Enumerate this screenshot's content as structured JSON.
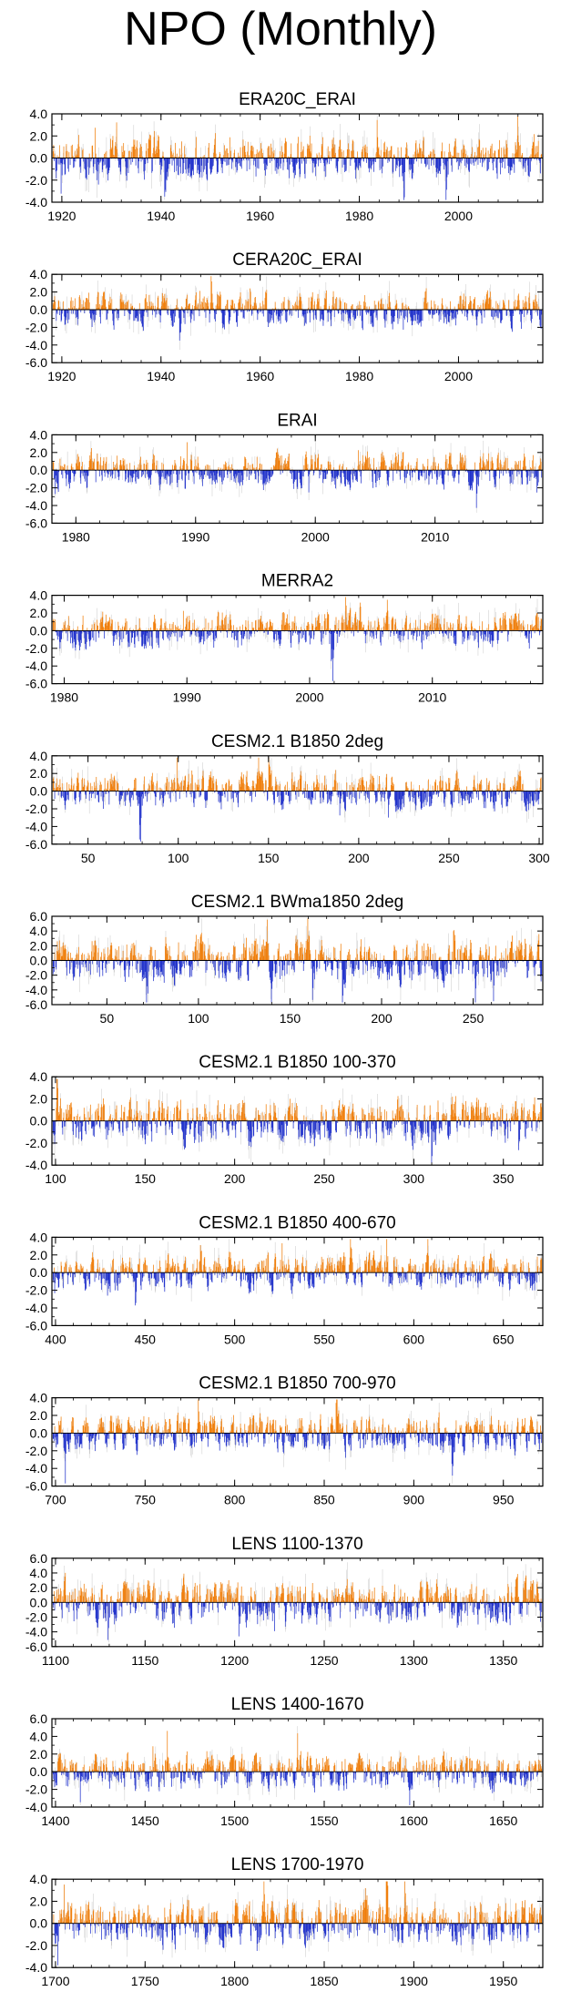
{
  "page_title": "NPO (Monthly)",
  "colors": {
    "positive": "#f07f0c",
    "negative": "#2233cc",
    "envelope": "#c8c8c8"
  },
  "chart_data": [
    {
      "type": "bar",
      "title": "ERA20C_ERAI",
      "xlim": [
        1918,
        2017
      ],
      "ylim": [
        -4.0,
        4.0
      ],
      "yticks": [
        4.0,
        2.0,
        0.0,
        -2.0,
        -4.0
      ],
      "yticklabels": [
        "4.0",
        "2.0",
        "0.0",
        "-2.0",
        "-4.0"
      ],
      "xticks": [
        1920,
        1940,
        1960,
        1980,
        2000
      ],
      "xticklabels": [
        "1920",
        "1940",
        "1960",
        "1980",
        "2000"
      ]
    },
    {
      "type": "bar",
      "title": "CERA20C_ERAI",
      "xlim": [
        1918,
        2017
      ],
      "ylim": [
        -6.0,
        4.0
      ],
      "yticks": [
        4.0,
        2.0,
        0.0,
        -2.0,
        -4.0,
        -6.0
      ],
      "yticklabels": [
        "4.0",
        "2.0",
        "0.0",
        "-2.0",
        "-4.0",
        "-6.0"
      ],
      "xticks": [
        1920,
        1940,
        1960,
        1980,
        2000
      ],
      "xticklabels": [
        "1920",
        "1940",
        "1960",
        "1980",
        "2000"
      ]
    },
    {
      "type": "bar",
      "title": "ERAI",
      "xlim": [
        1978,
        2019
      ],
      "ylim": [
        -6.0,
        4.0
      ],
      "yticks": [
        4.0,
        2.0,
        0.0,
        -2.0,
        -4.0,
        -6.0
      ],
      "yticklabels": [
        "4.0",
        "2.0",
        "0.0",
        "-2.0",
        "-4.0",
        "-6.0"
      ],
      "xticks": [
        1980,
        1990,
        2000,
        2010
      ],
      "xticklabels": [
        "1980",
        "1990",
        "2000",
        "2010"
      ]
    },
    {
      "type": "bar",
      "title": "MERRA2",
      "xlim": [
        1979,
        2019
      ],
      "ylim": [
        -6.0,
        4.0
      ],
      "yticks": [
        4.0,
        2.0,
        0.0,
        -2.0,
        -4.0,
        -6.0
      ],
      "yticklabels": [
        "4.0",
        "2.0",
        "0.0",
        "-2.0",
        "-4.0",
        "-6.0"
      ],
      "xticks": [
        1980,
        1990,
        2000,
        2010
      ],
      "xticklabels": [
        "1980",
        "1990",
        "2000",
        "2010"
      ]
    },
    {
      "type": "bar",
      "title": "CESM2.1 B1850 2deg",
      "xlim": [
        30,
        302
      ],
      "ylim": [
        -6.0,
        4.0
      ],
      "yticks": [
        4.0,
        2.0,
        0.0,
        -2.0,
        -4.0,
        -6.0
      ],
      "yticklabels": [
        "4.0",
        "2.0",
        "0.0",
        "-2.0",
        "-4.0",
        "-6.0"
      ],
      "xticks": [
        50,
        100,
        150,
        200,
        250,
        300
      ],
      "xticklabels": [
        "50",
        "100",
        "150",
        "200",
        "250",
        "300"
      ]
    },
    {
      "type": "bar",
      "title": "CESM2.1 BWma1850 2deg",
      "xlim": [
        20,
        288
      ],
      "ylim": [
        -6.0,
        6.0
      ],
      "yticks": [
        6.0,
        4.0,
        2.0,
        0.0,
        -2.0,
        -4.0,
        -6.0
      ],
      "yticklabels": [
        "6.0",
        "4.0",
        "2.0",
        "0.0",
        "-2.0",
        "-4.0",
        "-6.0"
      ],
      "xticks": [
        50,
        100,
        150,
        200,
        250
      ],
      "xticklabels": [
        "50",
        "100",
        "150",
        "200",
        "250"
      ]
    },
    {
      "type": "bar",
      "title": "CESM2.1 B1850 100-370",
      "xlim": [
        98,
        372
      ],
      "ylim": [
        -4.0,
        4.0
      ],
      "yticks": [
        4.0,
        2.0,
        0.0,
        -2.0,
        -4.0
      ],
      "yticklabels": [
        "4.0",
        "2.0",
        "0.0",
        "-2.0",
        "-4.0"
      ],
      "xticks": [
        100,
        150,
        200,
        250,
        300,
        350
      ],
      "xticklabels": [
        "100",
        "150",
        "200",
        "250",
        "300",
        "350"
      ]
    },
    {
      "type": "bar",
      "title": "CESM2.1 B1850 400-670",
      "xlim": [
        398,
        672
      ],
      "ylim": [
        -6.0,
        4.0
      ],
      "yticks": [
        4.0,
        2.0,
        0.0,
        -2.0,
        -4.0,
        -6.0
      ],
      "yticklabels": [
        "4.0",
        "2.0",
        "0.0",
        "-2.0",
        "-4.0",
        "-6.0"
      ],
      "xticks": [
        400,
        450,
        500,
        550,
        600,
        650
      ],
      "xticklabels": [
        "400",
        "450",
        "500",
        "550",
        "600",
        "650"
      ]
    },
    {
      "type": "bar",
      "title": "CESM2.1 B1850 700-970",
      "xlim": [
        698,
        972
      ],
      "ylim": [
        -6.0,
        4.0
      ],
      "yticks": [
        4.0,
        2.0,
        0.0,
        -2.0,
        -4.0,
        -6.0
      ],
      "yticklabels": [
        "4.0",
        "2.0",
        "0.0",
        "-2.0",
        "-4.0",
        "-6.0"
      ],
      "xticks": [
        700,
        750,
        800,
        850,
        900,
        950
      ],
      "xticklabels": [
        "700",
        "750",
        "800",
        "850",
        "900",
        "950"
      ]
    },
    {
      "type": "bar",
      "title": "LENS 1100-1370",
      "xlim": [
        1098,
        1372
      ],
      "ylim": [
        -6.0,
        6.0
      ],
      "yticks": [
        6.0,
        4.0,
        2.0,
        0.0,
        -2.0,
        -4.0,
        -6.0
      ],
      "yticklabels": [
        "6.0",
        "4.0",
        "2.0",
        "0.0",
        "-2.0",
        "-4.0",
        "-6.0"
      ],
      "xticks": [
        1100,
        1150,
        1200,
        1250,
        1300,
        1350
      ],
      "xticklabels": [
        "1100",
        "1150",
        "1200",
        "1250",
        "1300",
        "1350"
      ]
    },
    {
      "type": "bar",
      "title": "LENS 1400-1670",
      "xlim": [
        1398,
        1672
      ],
      "ylim": [
        -4.0,
        6.0
      ],
      "yticks": [
        6.0,
        4.0,
        2.0,
        0.0,
        -2.0,
        -4.0
      ],
      "yticklabels": [
        "6.0",
        "4.0",
        "2.0",
        "0.0",
        "-2.0",
        "-4.0"
      ],
      "xticks": [
        1400,
        1450,
        1500,
        1550,
        1600,
        1650
      ],
      "xticklabels": [
        "1400",
        "1450",
        "1500",
        "1550",
        "1600",
        "1650"
      ]
    },
    {
      "type": "bar",
      "title": "LENS 1700-1970",
      "xlim": [
        1698,
        1972
      ],
      "ylim": [
        -4.0,
        4.0
      ],
      "yticks": [
        4.0,
        2.0,
        0.0,
        -2.0,
        -4.0
      ],
      "yticklabels": [
        "4.0",
        "2.0",
        "0.0",
        "-2.0",
        "-4.0"
      ],
      "xticks": [
        1700,
        1750,
        1800,
        1850,
        1900,
        1950
      ],
      "xticklabels": [
        "1700",
        "1750",
        "1800",
        "1850",
        "1900",
        "1950"
      ]
    }
  ]
}
